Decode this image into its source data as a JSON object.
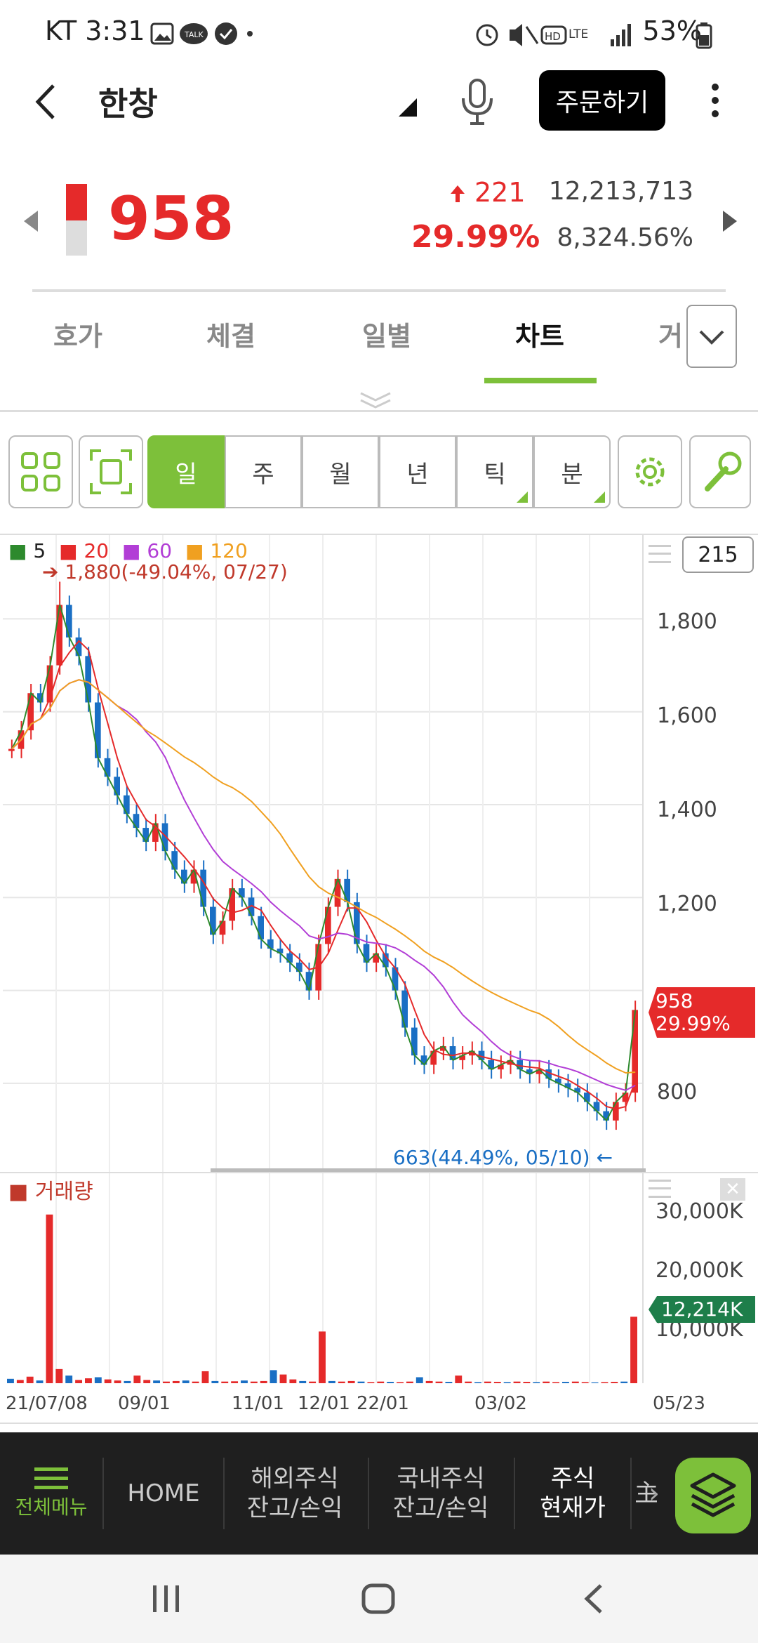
{
  "status": {
    "left": "KT 3:31",
    "right": "53%"
  },
  "header": {
    "title": "한창",
    "order_button": "주문하기"
  },
  "quote": {
    "price": "958",
    "change": "221",
    "change_pct": "29.99%",
    "volume": "12,213,713",
    "volume_ratio": "8,324.56%"
  },
  "tabs": [
    "호가",
    "체결",
    "일별",
    "차트",
    "거"
  ],
  "active_tab": "차트",
  "toolbar": {
    "periods": [
      "일",
      "주",
      "월",
      "년",
      "틱",
      "분"
    ],
    "active_period": "일"
  },
  "chart": {
    "count_box": "215",
    "legend": [
      {
        "label": "5",
        "color": "#2d8a2d"
      },
      {
        "label": "20",
        "color": "#e52a2a"
      },
      {
        "label": "60",
        "color": "#b23ed6"
      },
      {
        "label": "120",
        "color": "#f0a020"
      }
    ],
    "high_note": "1,880(-49.04%, 07/27)",
    "low_note": "663(44.49%, 05/10)",
    "current_tag_price": "958",
    "current_tag_pct": "29.99%",
    "volume_title": "거래량",
    "volume_tag": "12,214K",
    "y_ticks": [
      "1,800",
      "1,600",
      "1,400",
      "1,200",
      "800"
    ],
    "volume_ticks": [
      "30,000K",
      "20,000K",
      "10,000K"
    ],
    "x_ticks": [
      "21/07/08",
      "09/01",
      "11/01",
      "12/01",
      "22/01",
      "03/02",
      "05/23"
    ]
  },
  "chart_data": {
    "type": "candlestick",
    "y_unit": "KRW",
    "ylim": [
      620,
      1920
    ],
    "moving_averages": [
      5,
      20,
      60,
      120
    ],
    "close": [
      1520,
      1560,
      1640,
      1620,
      1700,
      1830,
      1760,
      1720,
      1620,
      1500,
      1460,
      1420,
      1380,
      1350,
      1320,
      1360,
      1300,
      1260,
      1230,
      1260,
      1180,
      1120,
      1150,
      1220,
      1200,
      1160,
      1110,
      1090,
      1080,
      1060,
      1040,
      1000,
      1100,
      1180,
      1240,
      1190,
      1100,
      1060,
      1080,
      1050,
      1000,
      920,
      860,
      840,
      870,
      880,
      850,
      860,
      870,
      850,
      830,
      840,
      850,
      830,
      820,
      830,
      810,
      800,
      790,
      780,
      760,
      740,
      720,
      760,
      780,
      958
    ],
    "high": 1880,
    "high_date": "07/27",
    "low": 663,
    "low_date": "05/10",
    "last": 958,
    "last_change_pct": 29.99,
    "volume_last_k": 12214,
    "volume_ylim_k": [
      0,
      32000
    ],
    "volume_k": [
      800,
      600,
      1200,
      500,
      31000,
      2600,
      1400,
      600,
      900,
      1100,
      700,
      500,
      400,
      1400,
      600,
      500,
      300,
      400,
      500,
      300,
      2200,
      400,
      300,
      350,
      500,
      300,
      400,
      2400,
      1600,
      700,
      400,
      300,
      9500,
      400,
      300,
      400,
      300,
      200,
      300,
      250,
      200,
      300,
      1100,
      400,
      300,
      250,
      1400,
      300,
      200,
      300,
      250,
      200,
      300,
      250,
      200,
      300,
      200,
      250,
      300,
      200,
      150,
      200,
      250,
      300,
      12214
    ]
  },
  "bottom_nav": {
    "menu": "전체메뉴",
    "home": "HOME",
    "overseas_l1": "해외주식",
    "overseas_l2": "잔고/손익",
    "domestic_l1": "국내주식",
    "domestic_l2": "잔고/손익",
    "current_l1": "주식",
    "current_l2": "현재가",
    "partial": "主"
  },
  "colors": {
    "accent": "#7dc03a",
    "up": "#e52a2a",
    "down": "#1a6fc4"
  }
}
